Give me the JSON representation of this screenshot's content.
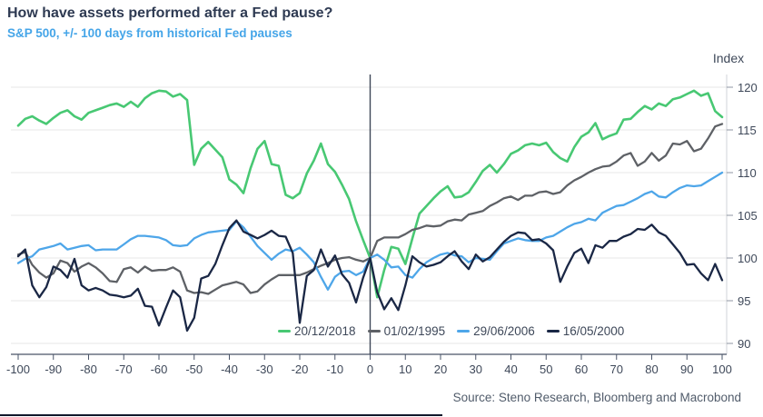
{
  "header": {
    "title": "How have assets performed after a Fed pause?",
    "subtitle": "S&P 500, +/- 100 days from historical Fed pauses"
  },
  "footer": {
    "source": "Source: Steno Research, Bloomberg and Macrobond"
  },
  "colors": {
    "title_text": "#2e3a52",
    "subtitle_text": "#45a5e8",
    "axis_text": "#3e4859",
    "grid_line": "#e7e7e7",
    "zero_line": "#3e4657",
    "x_axis_line": "#4a5468",
    "right_axis_line": "#d0d3d8",
    "right_axis_tick": "#8f96a3",
    "source_text": "#515c6b"
  },
  "chart_data": {
    "type": "line",
    "title": "How have assets performed after a Fed pause?",
    "subtitle": "S&P 500, +/- 100 days from historical Fed pauses",
    "xlabel": "",
    "ylabel": "Index",
    "xlim": [
      -100,
      100
    ],
    "ylim": [
      90,
      120
    ],
    "x_ticks": [
      -100,
      -90,
      -80,
      -70,
      -60,
      -50,
      -40,
      -30,
      -20,
      -10,
      0,
      10,
      20,
      30,
      40,
      50,
      60,
      70,
      80,
      90,
      100
    ],
    "y_ticks": [
      90,
      95,
      100,
      105,
      110,
      115,
      120
    ],
    "grid": "horizontal",
    "zero_line_x": 0,
    "legend_position": "bottom-inside",
    "x_start": -100,
    "x_step": 2,
    "series": [
      {
        "name": "20/12/2018",
        "color": "#48c873",
        "width": 2.6,
        "values": [
          115.5,
          116.3,
          116.6,
          116.1,
          115.7,
          116.4,
          117.0,
          117.3,
          116.6,
          116.2,
          117.0,
          117.3,
          117.6,
          117.9,
          118.1,
          117.7,
          118.3,
          117.7,
          118.7,
          119.3,
          119.6,
          119.5,
          118.9,
          119.2,
          118.5,
          110.9,
          112.8,
          113.6,
          112.7,
          111.8,
          109.2,
          108.6,
          107.6,
          110.5,
          112.8,
          113.7,
          111.0,
          110.8,
          107.4,
          107.0,
          107.6,
          109.9,
          111.4,
          113.4,
          111.0,
          110.1,
          108.6,
          106.9,
          104.3,
          102.1,
          100.0,
          95.4,
          98.6,
          101.3,
          101.1,
          99.3,
          102.3,
          105.2,
          106.1,
          107.0,
          107.8,
          108.4,
          107.1,
          107.2,
          107.7,
          108.9,
          110.2,
          110.9,
          110.0,
          111.0,
          112.2,
          112.6,
          113.2,
          113.4,
          113.2,
          113.5,
          112.4,
          111.7,
          111.3,
          113.0,
          114.2,
          114.7,
          115.8,
          113.9,
          114.3,
          114.6,
          116.2,
          116.3,
          117.1,
          117.8,
          117.4,
          118.1,
          117.8,
          118.6,
          118.8,
          119.2,
          119.6,
          119.0,
          119.3,
          117.2,
          116.5
        ]
      },
      {
        "name": "01/02/1995",
        "color": "#5e6166",
        "width": 2.3,
        "values": [
          100.4,
          100.7,
          99.2,
          98.3,
          97.7,
          98.2,
          99.7,
          99.4,
          98.4,
          99.0,
          99.4,
          98.9,
          98.2,
          97.3,
          97.2,
          98.7,
          98.9,
          98.3,
          99.0,
          98.5,
          98.6,
          98.6,
          98.9,
          98.4,
          96.2,
          95.9,
          96.0,
          95.8,
          96.3,
          96.8,
          97.0,
          97.2,
          96.9,
          95.9,
          96.1,
          96.9,
          97.5,
          98.0,
          98.0,
          98.0,
          98.0,
          98.3,
          98.7,
          99.1,
          99.4,
          99.8,
          100.0,
          100.1,
          99.8,
          99.6,
          100.0,
          102.0,
          102.4,
          102.4,
          102.4,
          102.8,
          103.3,
          103.5,
          103.8,
          103.7,
          103.8,
          104.3,
          104.5,
          104.4,
          105.1,
          105.3,
          105.5,
          106.1,
          106.5,
          107.0,
          107.2,
          106.8,
          107.3,
          107.3,
          107.7,
          107.8,
          107.5,
          107.7,
          108.5,
          109.1,
          109.5,
          110.0,
          110.4,
          110.7,
          110.8,
          111.3,
          112.0,
          112.3,
          110.8,
          111.3,
          112.3,
          111.4,
          112.0,
          113.4,
          113.3,
          113.7,
          112.5,
          112.8,
          114.0,
          115.4,
          115.7
        ]
      },
      {
        "name": "29/06/2006",
        "color": "#4ea6e9",
        "width": 2.3,
        "values": [
          99.4,
          99.9,
          100.2,
          101.0,
          101.2,
          101.4,
          101.7,
          101.0,
          101.2,
          101.4,
          101.5,
          100.9,
          101.0,
          101.0,
          101.0,
          101.6,
          102.2,
          102.6,
          102.6,
          102.5,
          102.4,
          102.1,
          101.5,
          101.4,
          101.5,
          102.3,
          102.7,
          103.0,
          103.1,
          103.2,
          103.3,
          104.3,
          103.6,
          102.5,
          101.4,
          100.6,
          99.8,
          100.5,
          101.0,
          100.8,
          101.2,
          100.4,
          99.5,
          97.8,
          96.3,
          97.8,
          98.4,
          98.5,
          98.0,
          98.4,
          100.0,
          100.4,
          99.8,
          98.9,
          99.0,
          98.0,
          97.7,
          98.7,
          99.5,
          100.0,
          100.4,
          100.6,
          100.3,
          100.2,
          99.5,
          100.0,
          99.9,
          99.8,
          100.8,
          101.7,
          102.0,
          102.3,
          102.1,
          102.0,
          102.0,
          102.4,
          102.6,
          103.1,
          103.6,
          104.0,
          104.2,
          104.6,
          104.4,
          105.3,
          105.7,
          106.1,
          106.2,
          106.6,
          107.0,
          107.5,
          107.8,
          107.2,
          107.1,
          107.7,
          108.2,
          108.5,
          108.4,
          108.5,
          109.0,
          109.5,
          110.0
        ]
      },
      {
        "name": "16/05/2000",
        "color": "#1a2745",
        "width": 2.3,
        "values": [
          100.2,
          101.0,
          96.8,
          95.4,
          96.6,
          99.0,
          98.6,
          97.7,
          99.9,
          96.8,
          96.2,
          96.5,
          96.2,
          95.7,
          95.6,
          95.4,
          95.6,
          96.4,
          94.4,
          94.3,
          92.1,
          94.2,
          96.2,
          95.4,
          91.5,
          93.0,
          97.6,
          97.9,
          99.3,
          101.5,
          103.5,
          104.4,
          103.1,
          102.7,
          102.3,
          102.7,
          103.2,
          102.6,
          102.5,
          100.6,
          92.4,
          97.9,
          98.6,
          101.0,
          99.0,
          100.3,
          98.1,
          97.1,
          94.8,
          97.7,
          100.0,
          96.0,
          94.0,
          95.3,
          93.9,
          96.8,
          100.2,
          99.5,
          99.0,
          99.2,
          99.5,
          100.2,
          100.8,
          99.6,
          98.7,
          100.4,
          99.6,
          100.1,
          101.0,
          101.9,
          102.6,
          103.0,
          102.9,
          102.1,
          102.2,
          101.7,
          100.9,
          97.2,
          99.0,
          100.6,
          101.1,
          99.4,
          101.5,
          101.2,
          102.0,
          102.0,
          102.5,
          102.8,
          103.4,
          103.3,
          103.9,
          103.0,
          102.6,
          101.6,
          100.6,
          99.2,
          99.3,
          98.2,
          97.4,
          99.3,
          97.4
        ]
      }
    ]
  }
}
